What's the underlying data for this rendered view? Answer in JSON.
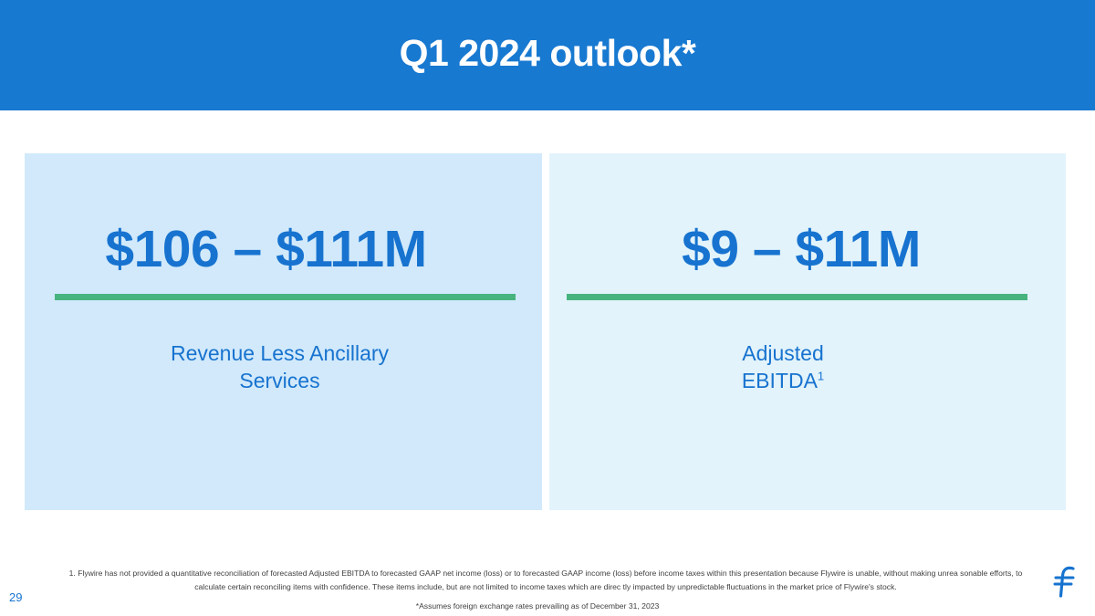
{
  "title": "Q1 2024 outlook*",
  "cards": [
    {
      "value": "$106 – $111M",
      "label_line1": "Revenue Less Ancillary",
      "label_line2": "Services",
      "footnote_marker": ""
    },
    {
      "value": "$9 – $11M",
      "label_line1": "Adjusted",
      "label_line2": "EBITDA",
      "footnote_marker": "1"
    }
  ],
  "footnote": {
    "line1": "1. Flywire has not provided a quantitative reconciliation of forecasted Adjusted EBITDA to forecasted GAAP net income (loss)            or  to forecasted GAAP income (loss) before income taxes within this presentation because Flywire is unable, without making unrea            sonable efforts, to",
    "line2": "calculate certain reconciling items with confidence. These items include, but are not limited to income taxes which are direc            tly  impacted by unpredictable fluctuations in the market price of Flywire's stock."
  },
  "page_number": "29",
  "assumption_note": "*Assumes foreign exchange rates prevailing as of December 31, 2023",
  "colors": {
    "header": "#1879d1",
    "accent_text": "#1773cf",
    "divider": "#47b47f",
    "card_left": "#d1e9fb",
    "card_right": "#e2f3fb"
  },
  "icons": {
    "logo": "flywire-logo-icon"
  }
}
